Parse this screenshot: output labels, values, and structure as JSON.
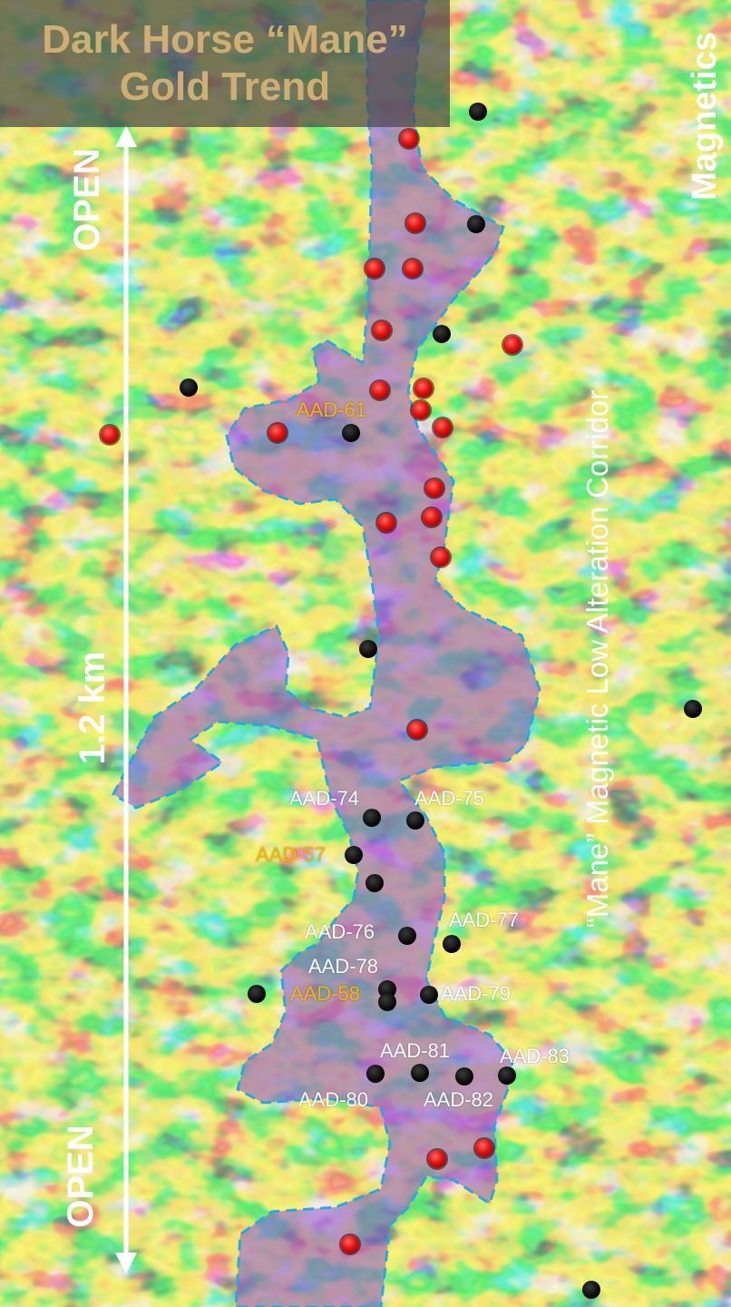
{
  "title": {
    "line1": "Dark Horse “Mane”",
    "line2": "Gold Trend"
  },
  "side_title": "Magnetics",
  "corridor_label": "“Mane” Magnetic Low Alteration Corridor",
  "scale": {
    "label": "1.2 km",
    "open_top": "OPEN",
    "open_bottom": "OPEN"
  },
  "drillholes": {
    "AAD-61": "AAD-61",
    "AAD-74": "AAD-74",
    "AAD-75": "AAD-75",
    "AAD-57": "AAD-57",
    "AAD-76": "AAD-76",
    "AAD-77": "AAD-77",
    "AAD-78": "AAD-78",
    "AAD-58": "AAD-58",
    "AAD-79": "AAD-79",
    "AAD-81": "AAD-81",
    "AAD-83": "AAD-83",
    "AAD-80": "AAD-80",
    "AAD-82": "AAD-82"
  },
  "colors": {
    "title_gold": "#cfae73",
    "highlight_label": "#f2b705",
    "normal_label": "#ffffff",
    "corridor_outline": "#2aa8e0",
    "red_hole": "#e01010",
    "black_hole": "#000000"
  },
  "legend_hint": {
    "red_markers": "red-dot-icon",
    "black_markers": "black-dot-icon"
  }
}
